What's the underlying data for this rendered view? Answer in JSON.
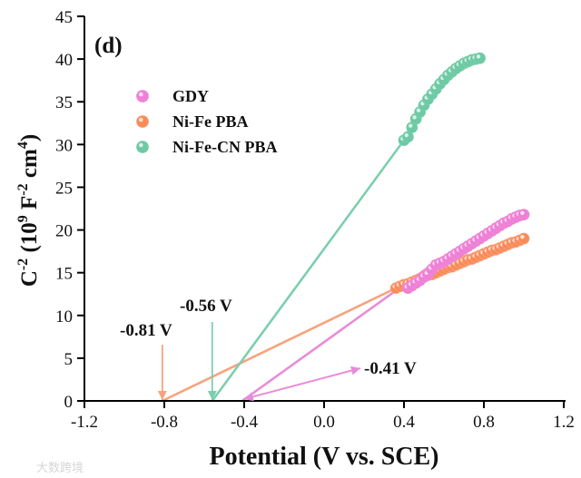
{
  "chart_data": {
    "type": "scatter",
    "panel_label": "(d)",
    "xlabel": "Potential (V vs. SCE)",
    "ylabel": {
      "base": "C",
      "base_sup": "-2",
      "unit_open": " (10",
      "unit_sup1": "9",
      "unit_mid": " F",
      "unit_sup2": "-2",
      "unit_mid2": " cm",
      "unit_sup3": "4",
      "unit_close": ")"
    },
    "xlim": [
      -1.2,
      1.2
    ],
    "ylim": [
      0,
      45
    ],
    "xticks": [
      -1.2,
      -0.8,
      -0.4,
      0.0,
      0.4,
      0.8,
      1.2
    ],
    "xtick_labels": [
      "-1.2",
      "-0.8",
      "-0.4",
      "0.0",
      "0.4",
      "0.8",
      "1.2"
    ],
    "yticks": [
      0,
      5,
      10,
      15,
      20,
      25,
      30,
      35,
      40,
      45
    ],
    "ytick_labels": [
      "0",
      "5",
      "10",
      "15",
      "20",
      "25",
      "30",
      "35",
      "40",
      "45"
    ],
    "legend_position": "upper-left",
    "series": [
      {
        "name": "GDY",
        "color": "#f07fd6",
        "line_color": "#e98bd9",
        "x": [
          0.42,
          0.44,
          0.46,
          0.48,
          0.5,
          0.52,
          0.54,
          0.56,
          0.58,
          0.6,
          0.62,
          0.64,
          0.66,
          0.68,
          0.7,
          0.72,
          0.74,
          0.76,
          0.78,
          0.8,
          0.82,
          0.84,
          0.86,
          0.88,
          0.9,
          0.92,
          0.94,
          0.96,
          0.98,
          1.0
        ],
        "y": [
          13.2,
          13.5,
          13.8,
          14.1,
          14.5,
          14.8,
          15.4,
          15.9,
          16.1,
          16.3,
          16.6,
          16.9,
          17.2,
          17.5,
          17.8,
          18.1,
          18.4,
          18.7,
          19.0,
          19.3,
          19.6,
          19.9,
          20.2,
          20.5,
          20.8,
          21.0,
          21.3,
          21.5,
          21.7,
          21.8
        ],
        "fit": {
          "x": [
            -0.41,
            0.52
          ],
          "y": [
            0,
            15.6
          ]
        },
        "intercept_label": "-0.41 V"
      },
      {
        "name": "Ni-Fe PBA",
        "color": "#fa8a58",
        "line_color": "#f8a27c",
        "x": [
          0.36,
          0.38,
          0.4,
          0.42,
          0.44,
          0.46,
          0.48,
          0.5,
          0.52,
          0.54,
          0.56,
          0.58,
          0.6,
          0.62,
          0.64,
          0.66,
          0.68,
          0.7,
          0.72,
          0.74,
          0.76,
          0.78,
          0.8,
          0.82,
          0.84,
          0.86,
          0.88,
          0.9,
          0.92,
          0.94,
          0.96,
          0.98,
          1.0
        ],
        "y": [
          13.2,
          13.4,
          13.6,
          13.7,
          13.9,
          14.1,
          14.3,
          14.5,
          14.7,
          14.8,
          15.0,
          15.2,
          15.4,
          15.6,
          15.7,
          15.9,
          16.1,
          16.3,
          16.5,
          16.6,
          16.8,
          17.0,
          17.2,
          17.4,
          17.6,
          17.7,
          17.9,
          18.1,
          18.3,
          18.5,
          18.6,
          18.8,
          19.0
        ],
        "fit": {
          "x": [
            -0.81,
            0.36
          ],
          "y": [
            0,
            13.2
          ]
        },
        "intercept_label": "-0.81 V"
      },
      {
        "name": "Ni-Fe-CN PBA",
        "color": "#6ccaa4",
        "line_color": "#7ccfae",
        "x": [
          0.4,
          0.42,
          0.44,
          0.46,
          0.48,
          0.5,
          0.52,
          0.54,
          0.56,
          0.58,
          0.6,
          0.62,
          0.64,
          0.66,
          0.68,
          0.7,
          0.72,
          0.74,
          0.76,
          0.78
        ],
        "y": [
          30.5,
          30.9,
          32.0,
          33.0,
          33.8,
          34.6,
          35.3,
          35.9,
          36.5,
          37.1,
          37.6,
          38.1,
          38.5,
          38.9,
          39.2,
          39.5,
          39.7,
          39.9,
          40.0,
          40.1
        ],
        "fit": {
          "x": [
            -0.56,
            0.4
          ],
          "y": [
            0,
            30.5
          ]
        },
        "intercept_label": "-0.56 V"
      }
    ]
  },
  "watermark": "大数跨境"
}
